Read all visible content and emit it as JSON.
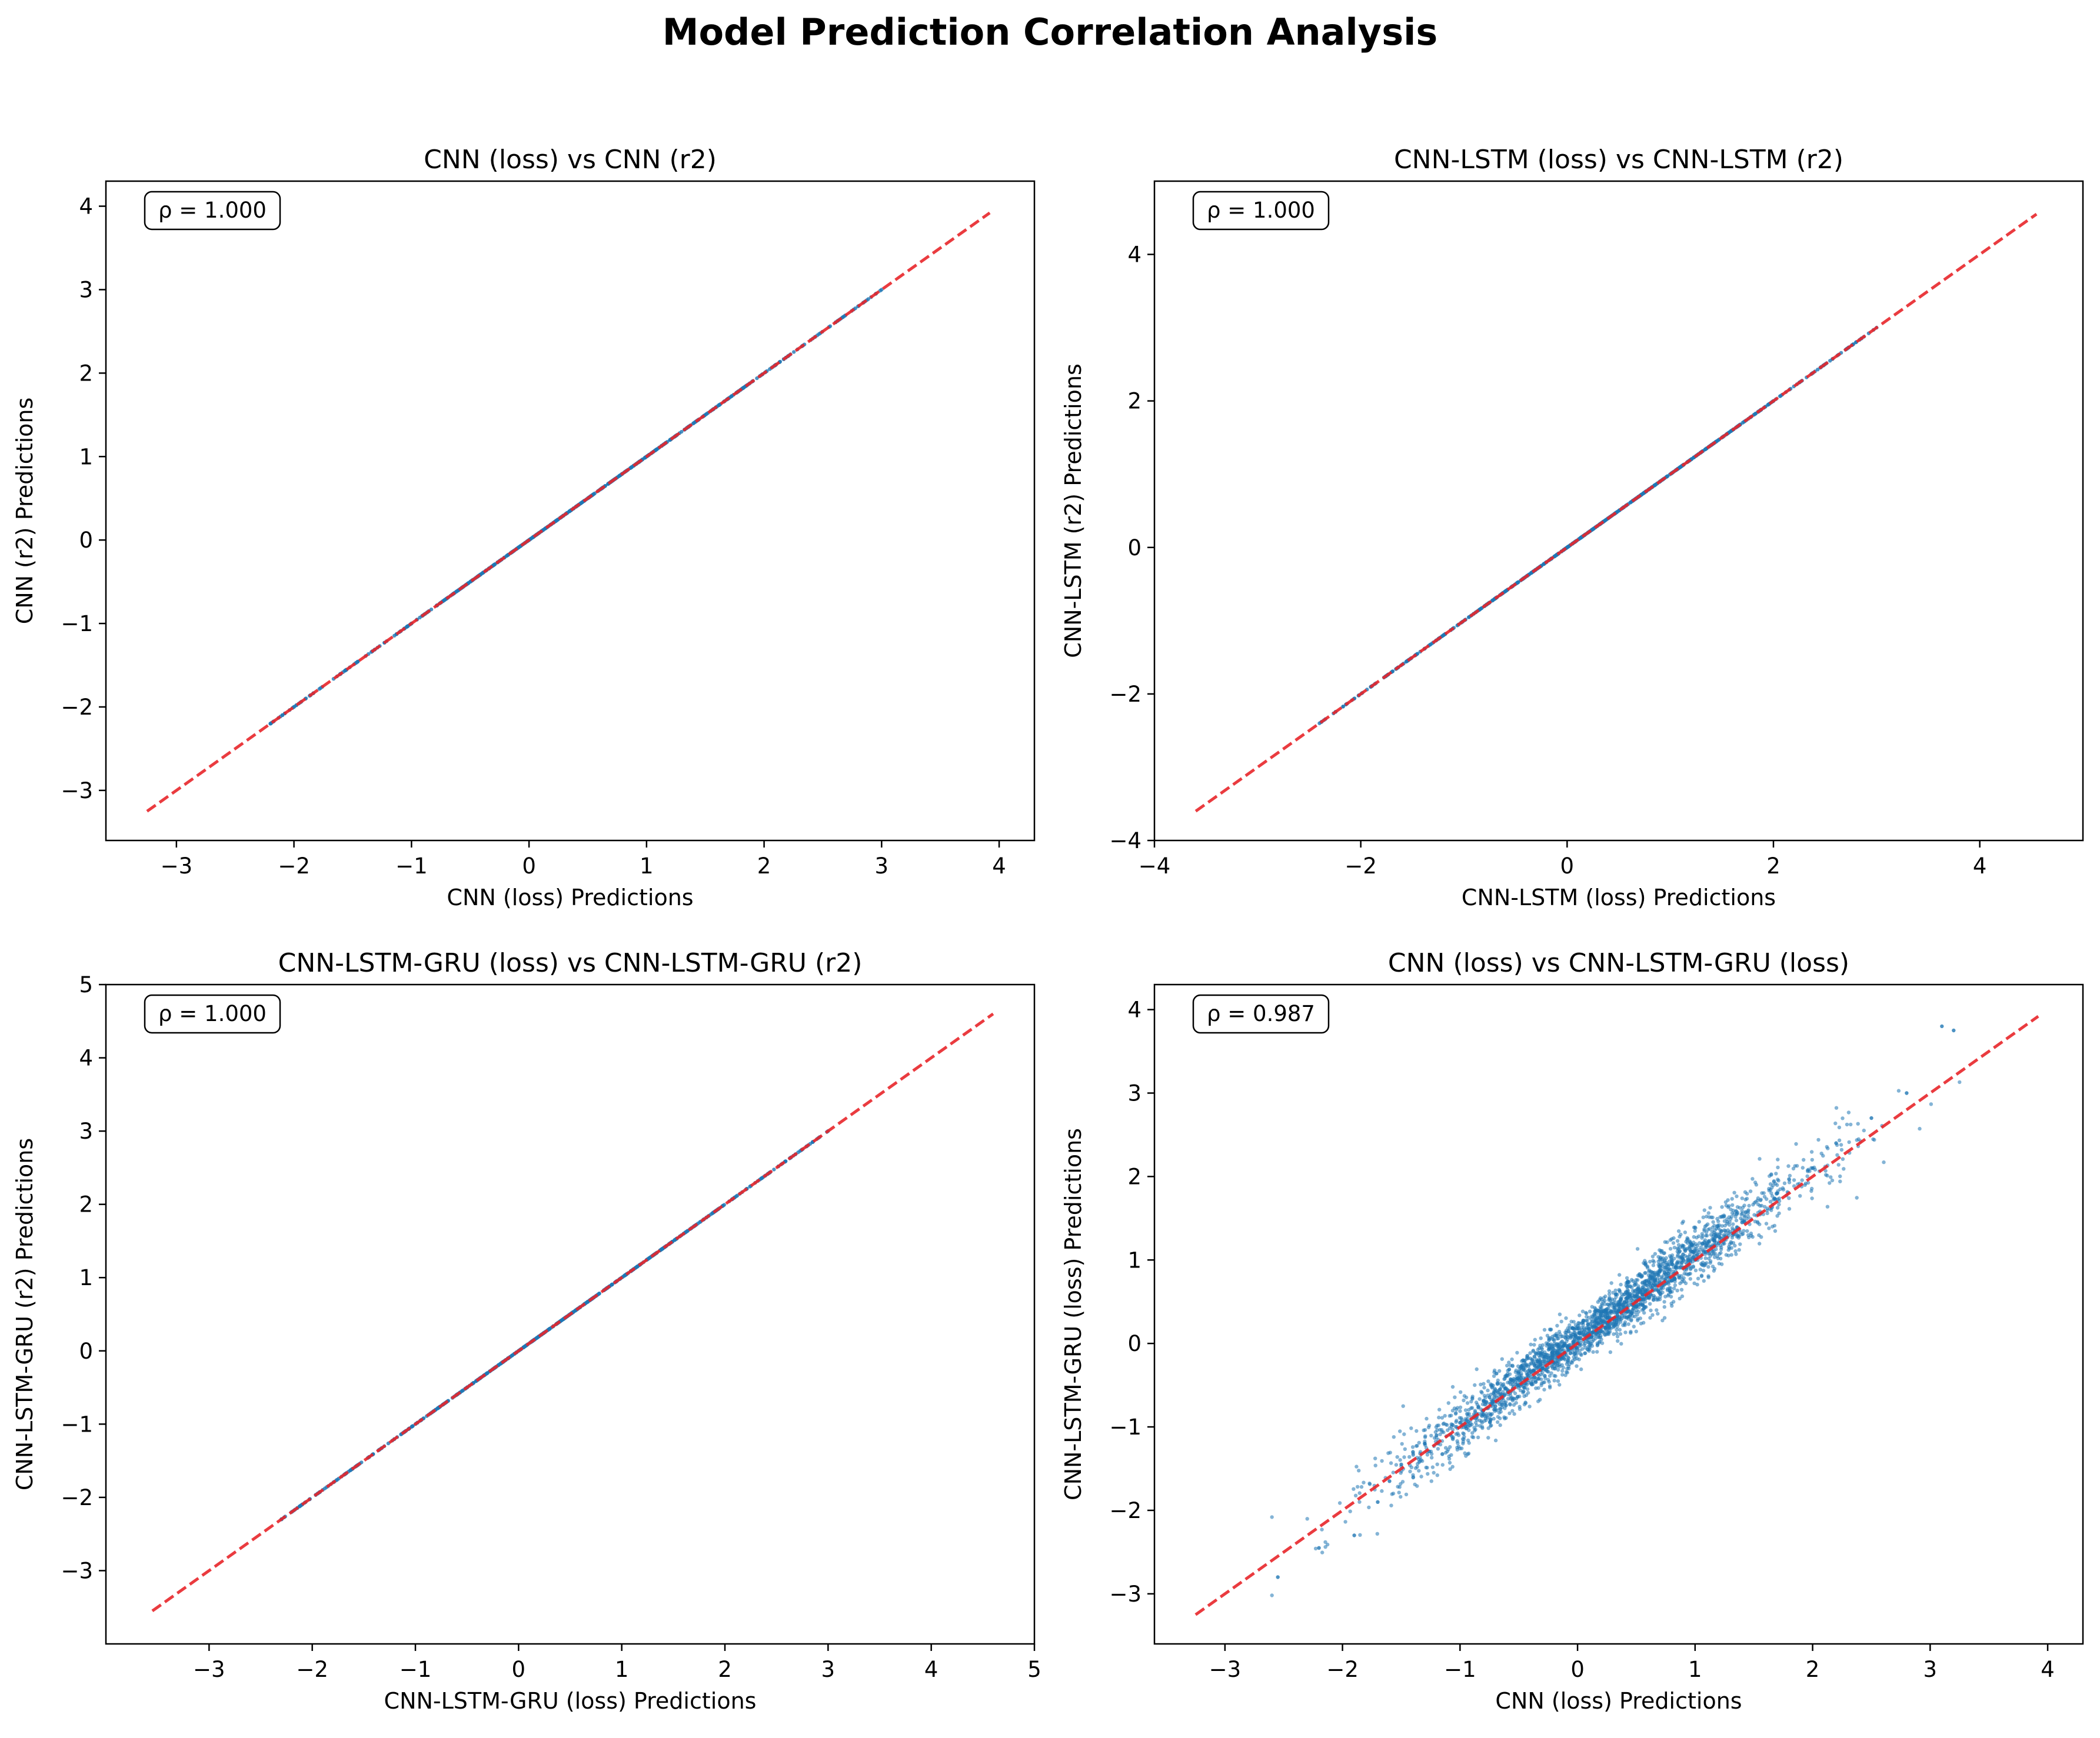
{
  "figure": {
    "title": "Model Prediction Correlation Analysis",
    "point_color": "#1f77b4",
    "identity_line_color": "#e8262b"
  },
  "chart_data": [
    {
      "type": "scatter",
      "title": "CNN (loss) vs CNN (r2)",
      "xlabel": "CNN (loss) Predictions",
      "ylabel": "CNN (r2) Predictions",
      "xlim": [
        -3.6,
        4.3
      ],
      "ylim": [
        -3.6,
        4.3
      ],
      "xticks": [
        -3,
        -2,
        -1,
        0,
        1,
        2,
        3,
        4
      ],
      "yticks": [
        -3,
        -2,
        -1,
        0,
        1,
        2,
        3,
        4
      ],
      "annotation": "ρ = 1.000",
      "correlation": 1.0,
      "identity_line": [
        -3.25,
        3.92
      ],
      "grid": false,
      "points": [
        [
          -2.2,
          -2.2
        ],
        [
          -1.6,
          -1.6
        ],
        [
          -1.0,
          -1.0
        ],
        [
          -0.5,
          -0.5
        ],
        [
          0.0,
          0.0
        ],
        [
          0.5,
          0.5
        ],
        [
          1.0,
          1.0
        ],
        [
          1.5,
          1.5
        ],
        [
          2.0,
          2.0
        ],
        [
          2.5,
          2.5
        ],
        [
          3.0,
          3.0
        ]
      ],
      "note_points": "dense band along y = x from about -2.3 to 3.0"
    },
    {
      "type": "scatter",
      "title": "CNN-LSTM (loss) vs CNN-LSTM (r2)",
      "xlabel": "CNN-LSTM (loss) Predictions",
      "ylabel": "CNN-LSTM (r2) Predictions",
      "xlim": [
        -4.0,
        5.0
      ],
      "ylim": [
        -4.0,
        5.0
      ],
      "xticks": [
        -4,
        -2,
        0,
        2,
        4
      ],
      "yticks": [
        -4,
        -2,
        0,
        2,
        4
      ],
      "annotation": "ρ = 1.000",
      "correlation": 1.0,
      "identity_line": [
        -3.6,
        4.55
      ],
      "grid": false,
      "points": [
        [
          -2.4,
          -2.4
        ],
        [
          -1.8,
          -1.8
        ],
        [
          -1.0,
          -1.0
        ],
        [
          0.0,
          0.0
        ],
        [
          1.0,
          1.0
        ],
        [
          2.0,
          2.0
        ],
        [
          3.0,
          3.0
        ]
      ],
      "note_points": "dense band along y = x from about -2.4 to 3.1"
    },
    {
      "type": "scatter",
      "title": "CNN-LSTM-GRU (loss) vs CNN-LSTM-GRU (r2)",
      "xlabel": "CNN-LSTM-GRU (loss) Predictions",
      "ylabel": "CNN-LSTM-GRU (r2) Predictions",
      "xlim": [
        -4.0,
        5.0
      ],
      "ylim": [
        -4.0,
        5.0
      ],
      "xticks": [
        -3,
        -2,
        -1,
        0,
        1,
        2,
        3,
        4,
        5
      ],
      "yticks": [
        -3,
        -2,
        -1,
        0,
        1,
        2,
        3,
        4,
        5
      ],
      "annotation": "ρ = 1.000",
      "correlation": 1.0,
      "identity_line": [
        -3.55,
        4.6
      ],
      "grid": false,
      "points": [
        [
          -2.3,
          -2.3
        ],
        [
          -1.8,
          -1.8
        ],
        [
          -1.0,
          -1.0
        ],
        [
          0.0,
          0.0
        ],
        [
          1.0,
          1.0
        ],
        [
          2.0,
          2.0
        ],
        [
          3.0,
          3.0
        ]
      ],
      "note_points": "dense band along y = x from about -2.3 to 3.1"
    },
    {
      "type": "scatter",
      "title": "CNN (loss) vs CNN-LSTM-GRU (loss)",
      "xlabel": "CNN (loss) Predictions",
      "ylabel": "CNN-LSTM-GRU (loss) Predictions",
      "xlim": [
        -3.6,
        4.3
      ],
      "ylim": [
        -3.6,
        4.3
      ],
      "xticks": [
        -3,
        -2,
        -1,
        0,
        1,
        2,
        3,
        4
      ],
      "yticks": [
        -3,
        -2,
        -1,
        0,
        1,
        2,
        3,
        4
      ],
      "annotation": "ρ = 0.987",
      "correlation": 0.987,
      "identity_line": [
        -3.25,
        3.92
      ],
      "grid": false,
      "points": [
        [
          -2.55,
          -2.8
        ],
        [
          -2.2,
          -2.45
        ],
        [
          -1.9,
          -2.3
        ],
        [
          -1.7,
          -1.9
        ],
        [
          -1.6,
          -1.65
        ],
        [
          -1.5,
          -1.45
        ],
        [
          -1.4,
          -1.3
        ],
        [
          -1.3,
          -1.2
        ],
        [
          -1.2,
          -1.1
        ],
        [
          -1.0,
          -0.95
        ],
        [
          -0.8,
          -0.8
        ],
        [
          -0.5,
          -0.5
        ],
        [
          -0.3,
          -0.3
        ],
        [
          0.0,
          0.0
        ],
        [
          0.3,
          0.3
        ],
        [
          0.5,
          0.5
        ],
        [
          0.8,
          0.75
        ],
        [
          1.0,
          1.0
        ],
        [
          1.2,
          1.2
        ],
        [
          1.4,
          1.45
        ],
        [
          1.7,
          1.8
        ],
        [
          2.0,
          2.1
        ],
        [
          2.2,
          2.4
        ],
        [
          2.5,
          2.7
        ],
        [
          2.8,
          3.0
        ],
        [
          3.1,
          3.8
        ],
        [
          3.2,
          3.75
        ]
      ],
      "note_points": "dense elliptical cloud along y = x from about -2.6 to 3.2, spread widening at extremes"
    }
  ]
}
